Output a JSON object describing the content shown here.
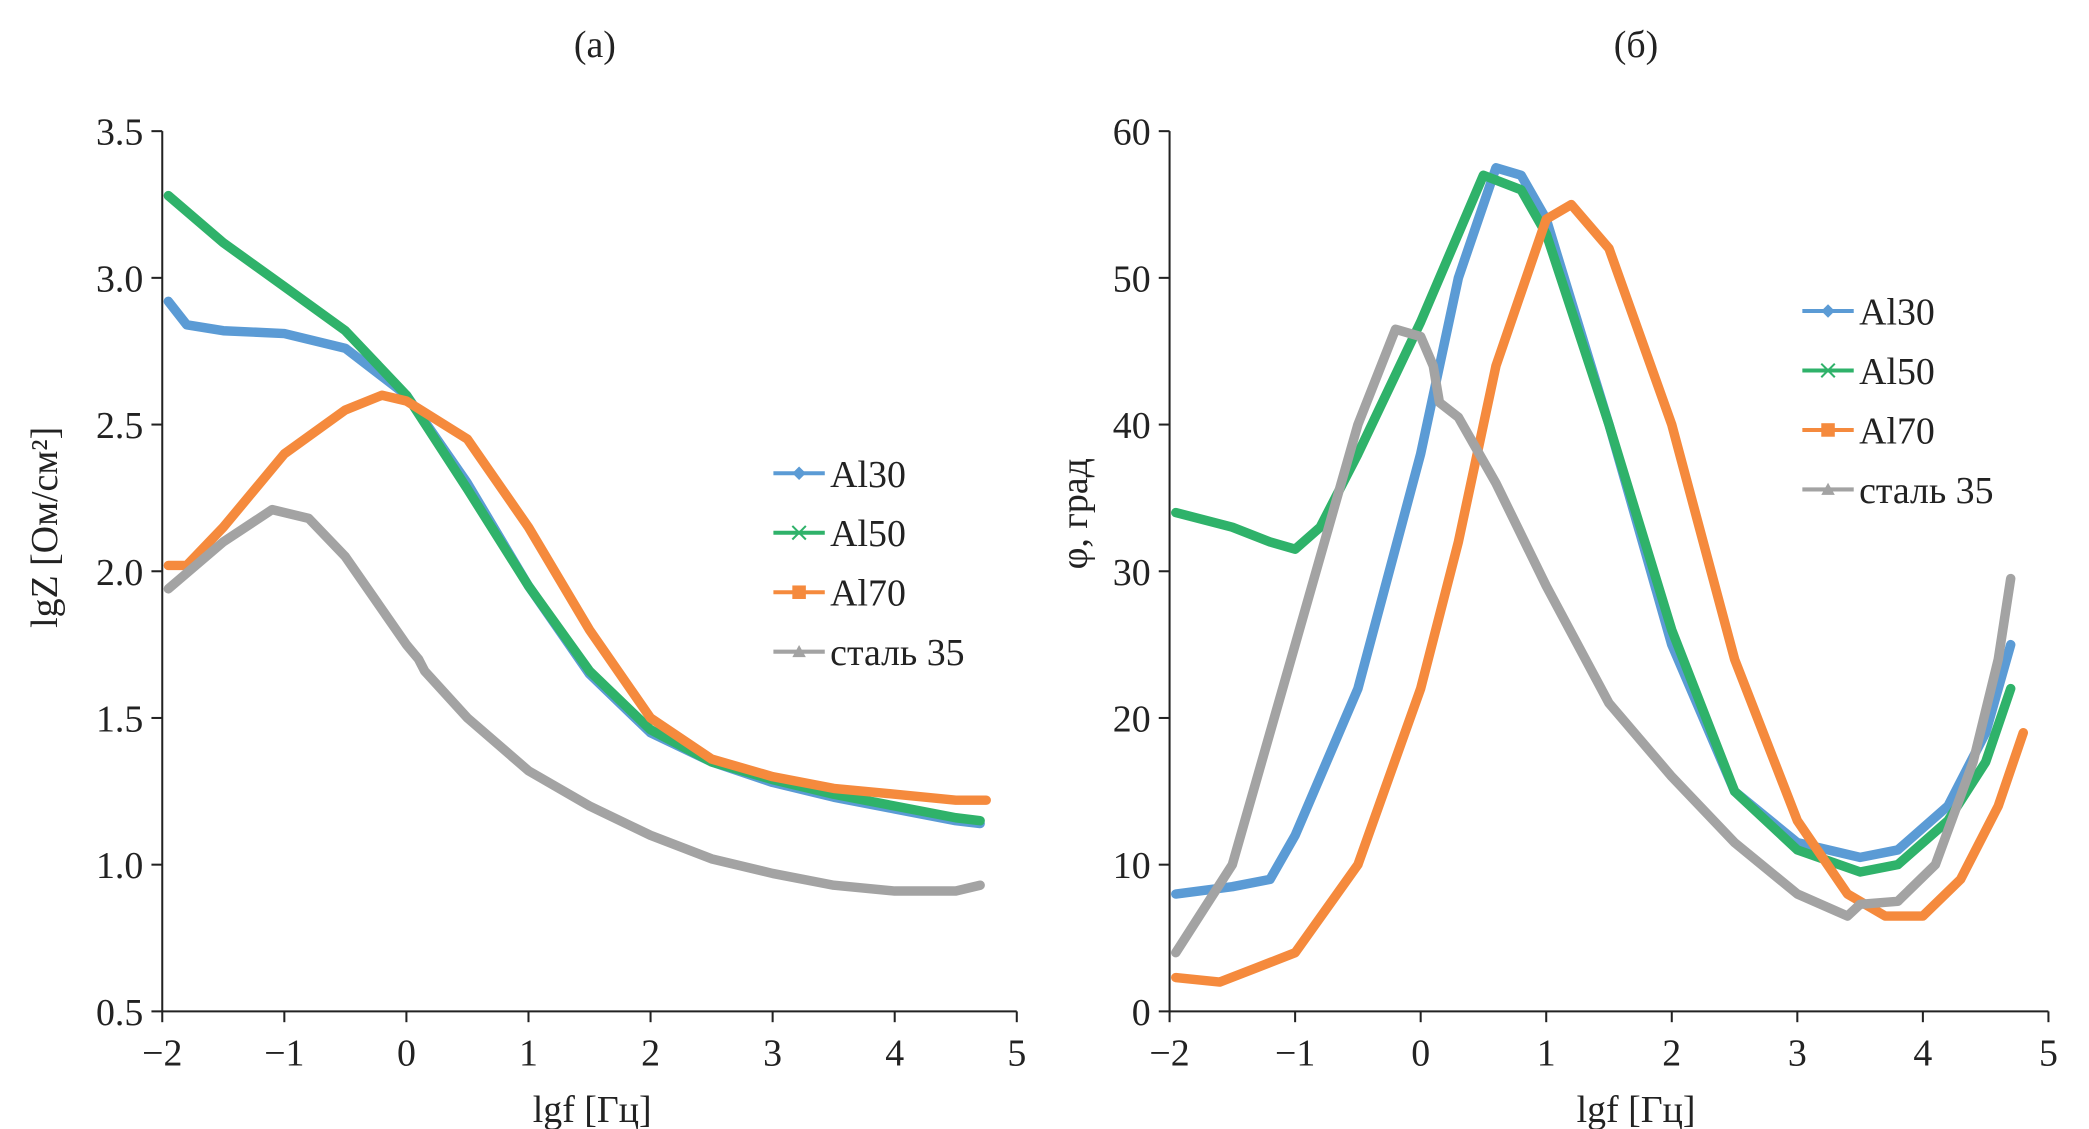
{
  "colors": {
    "Al30": "#5b9bd5",
    "Al50": "#2fb26a",
    "Al70": "#f58a3d",
    "steel": "#a3a3a3"
  },
  "chart_data": [
    {
      "type": "line",
      "panel_label": "(а)",
      "xlabel": "lgf [Гц]",
      "ylabel": "lgZ [Ом/см²]",
      "xlim": [
        -2,
        5
      ],
      "ylim": [
        0.5,
        3.5
      ],
      "xticks": [
        -2,
        -1,
        0,
        1,
        2,
        3,
        4,
        5
      ],
      "xtick_labels": [
        "−2",
        "−1",
        "0",
        "1",
        "2",
        "3",
        "4",
        "5"
      ],
      "yticks": [
        0.5,
        1.0,
        1.5,
        2.0,
        2.5,
        3.0,
        3.5
      ],
      "ytick_labels": [
        "0.5",
        "1.0",
        "1.5",
        "2.0",
        "2.5",
        "3.0",
        "3.5"
      ],
      "grid": false,
      "legend": "right",
      "series": [
        {
          "name": "Al30",
          "key": "Al30",
          "marker": "diamond",
          "x": [
            -1.95,
            -1.8,
            -1.5,
            -1,
            -0.5,
            0,
            0.5,
            1,
            1.5,
            2,
            2.5,
            3,
            3.5,
            4,
            4.5,
            4.7
          ],
          "y": [
            2.92,
            2.84,
            2.82,
            2.81,
            2.76,
            2.6,
            2.3,
            1.95,
            1.65,
            1.45,
            1.35,
            1.28,
            1.23,
            1.19,
            1.15,
            1.14
          ]
        },
        {
          "name": "Al50",
          "key": "Al50",
          "marker": "x",
          "x": [
            -1.95,
            -1.5,
            -1,
            -0.5,
            0,
            0.5,
            1,
            1.5,
            2,
            2.5,
            3,
            3.5,
            4,
            4.5,
            4.7
          ],
          "y": [
            3.28,
            3.12,
            2.97,
            2.82,
            2.6,
            2.28,
            1.95,
            1.66,
            1.46,
            1.35,
            1.29,
            1.24,
            1.2,
            1.16,
            1.15
          ]
        },
        {
          "name": "Al70",
          "key": "Al70",
          "marker": "square",
          "x": [
            -1.95,
            -1.8,
            -1.5,
            -1,
            -0.5,
            -0.2,
            0,
            0.5,
            1,
            1.5,
            2,
            2.5,
            3,
            3.5,
            4,
            4.5,
            4.75
          ],
          "y": [
            2.02,
            2.02,
            2.15,
            2.4,
            2.55,
            2.6,
            2.58,
            2.45,
            2.15,
            1.8,
            1.5,
            1.36,
            1.3,
            1.26,
            1.24,
            1.22,
            1.22
          ]
        },
        {
          "name": "сталь 35",
          "key": "steel",
          "marker": "triangle",
          "x": [
            -1.95,
            -1.5,
            -1.1,
            -0.8,
            -0.5,
            0,
            0.1,
            0.15,
            0.5,
            1,
            1.5,
            2,
            2.5,
            3,
            3.5,
            4,
            4.5,
            4.7
          ],
          "y": [
            1.94,
            2.1,
            2.21,
            2.18,
            2.05,
            1.75,
            1.7,
            1.66,
            1.5,
            1.32,
            1.2,
            1.1,
            1.02,
            0.97,
            0.93,
            0.91,
            0.91,
            0.93
          ]
        }
      ]
    },
    {
      "type": "line",
      "panel_label": "(б)",
      "xlabel": "lgf  [Гц]",
      "ylabel": "φ, град",
      "xlim": [
        -2,
        5
      ],
      "ylim": [
        0,
        60
      ],
      "xticks": [
        -2,
        -1,
        0,
        1,
        2,
        3,
        4,
        5
      ],
      "xtick_labels": [
        "−2",
        "−1",
        "0",
        "1",
        "2",
        "3",
        "4",
        "5"
      ],
      "yticks": [
        0,
        10,
        20,
        30,
        40,
        50,
        60
      ],
      "ytick_labels": [
        "0",
        "10",
        "20",
        "30",
        "40",
        "50",
        "60"
      ],
      "grid": false,
      "legend": "right",
      "series": [
        {
          "name": "Al30",
          "key": "Al30",
          "marker": "diamond",
          "x": [
            -1.95,
            -1.5,
            -1.2,
            -1,
            -0.5,
            0,
            0.3,
            0.6,
            0.8,
            1,
            1.5,
            2,
            2.5,
            3,
            3.5,
            3.8,
            4.2,
            4.5,
            4.7
          ],
          "y": [
            8,
            8.5,
            9,
            12,
            22,
            38,
            50,
            57.5,
            57,
            54,
            40,
            25,
            15,
            11.5,
            10.5,
            11,
            14,
            19,
            25
          ]
        },
        {
          "name": "Al50",
          "key": "Al50",
          "marker": "x",
          "x": [
            -1.95,
            -1.5,
            -1.2,
            -1,
            -0.8,
            -0.5,
            0,
            0.5,
            0.8,
            1,
            1.5,
            2,
            2.5,
            3,
            3.5,
            3.8,
            4.2,
            4.5,
            4.7
          ],
          "y": [
            34,
            33,
            32,
            31.5,
            33,
            38,
            47,
            57,
            56,
            53,
            40,
            26,
            15,
            11,
            9.5,
            10,
            13,
            17,
            22
          ]
        },
        {
          "name": "Al70",
          "key": "Al70",
          "marker": "square",
          "x": [
            -1.95,
            -1.6,
            -1.3,
            -1,
            -0.5,
            0,
            0.3,
            0.6,
            1,
            1.2,
            1.5,
            2,
            2.5,
            3,
            3.4,
            3.7,
            4,
            4.3,
            4.6,
            4.8
          ],
          "y": [
            2.3,
            2,
            3,
            4,
            10,
            22,
            32,
            44,
            54,
            55,
            52,
            40,
            24,
            13,
            8,
            6.5,
            6.5,
            9,
            14,
            19
          ]
        },
        {
          "name": "сталь 35",
          "key": "steel",
          "marker": "triangle",
          "x": [
            -1.95,
            -1.5,
            -1,
            -0.5,
            -0.2,
            0,
            0.1,
            0.15,
            0.3,
            0.6,
            1,
            1.5,
            2,
            2.5,
            3,
            3.4,
            3.5,
            3.8,
            4.1,
            4.4,
            4.6,
            4.7
          ],
          "y": [
            4,
            10,
            25,
            40,
            46.5,
            46,
            44,
            41.5,
            40.5,
            36,
            29,
            21,
            16,
            11.5,
            8,
            6.5,
            7.3,
            7.5,
            10,
            17,
            24,
            29.5
          ]
        }
      ]
    }
  ]
}
